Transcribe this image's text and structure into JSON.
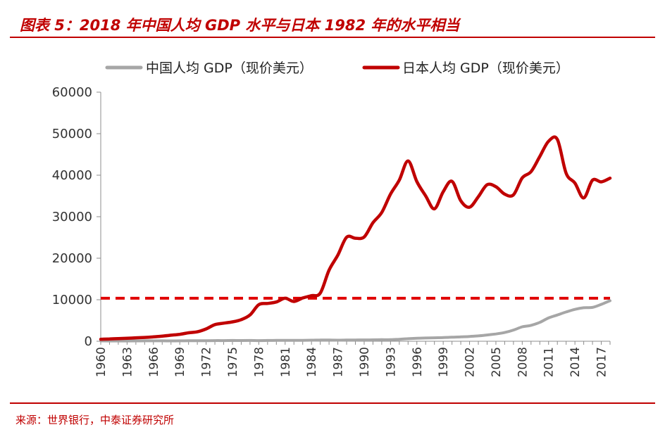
{
  "title": "图表 5：2018 年中国人均 GDP 水平与日本 1982 年的水平相当",
  "source": "来源：世界银行，中泰证券研究所",
  "colors": {
    "china": "#a6a6a6",
    "japan": "#c00000",
    "reference": "#e00000",
    "accent": "#c00000"
  },
  "chart_data": {
    "type": "line",
    "x_tick_labels": [
      "1960",
      "1963",
      "1966",
      "1969",
      "1972",
      "1975",
      "1978",
      "1981",
      "1984",
      "1987",
      "1990",
      "1993",
      "1996",
      "1999",
      "2002",
      "2005",
      "2008",
      "2011",
      "2014",
      "2017"
    ],
    "y_tick_labels": [
      "0",
      "10000",
      "20000",
      "30000",
      "40000",
      "50000",
      "60000"
    ],
    "ylim": [
      0,
      60000
    ],
    "xlim": [
      1960,
      2018
    ],
    "grid": false,
    "legend_position": "top",
    "x": [
      1960,
      1961,
      1962,
      1963,
      1964,
      1965,
      1966,
      1967,
      1968,
      1969,
      1970,
      1971,
      1972,
      1973,
      1974,
      1975,
      1976,
      1977,
      1978,
      1979,
      1980,
      1981,
      1982,
      1983,
      1984,
      1985,
      1986,
      1987,
      1988,
      1989,
      1990,
      1991,
      1992,
      1993,
      1994,
      1995,
      1996,
      1997,
      1998,
      1999,
      2000,
      2001,
      2002,
      2003,
      2004,
      2005,
      2006,
      2007,
      2008,
      2009,
      2010,
      2011,
      2012,
      2013,
      2014,
      2015,
      2016,
      2017,
      2018
    ],
    "series": [
      {
        "name": "中国人均 GDP（现价美元）",
        "values": [
          90,
          75,
          70,
          74,
          85,
          98,
          104,
          96,
          91,
          100,
          113,
          118,
          132,
          157,
          160,
          178,
          165,
          185,
          156,
          184,
          195,
          197,
          203,
          225,
          250,
          294,
          281,
          252,
          284,
          311,
          318,
          333,
          366,
          377,
          474,
          610,
          709,
          781,
          828,
          873,
          959,
          1053,
          1149,
          1289,
          1509,
          1753,
          2099,
          2694,
          3468,
          3832,
          4550,
          5618,
          6317,
          7051,
          7679,
          8067,
          8148,
          8879,
          9771
        ]
      },
      {
        "name": "日本人均 GDP（现价美元）",
        "values": [
          479,
          563,
          634,
          717,
          836,
          919,
          1058,
          1229,
          1451,
          1669,
          2037,
          2272,
          2967,
          3998,
          4353,
          4659,
          5197,
          6335,
          8821,
          9105,
          9463,
          10361,
          9578,
          10425,
          10978,
          11585,
          17113,
          20745,
          25052,
          24822,
          25124,
          28541,
          31014,
          35451,
          38815,
          43440,
          38437,
          35022,
          31903,
          36027,
          38532,
          33846,
          32289,
          34808,
          37689,
          37218,
          35434,
          35275,
          39339,
          40855,
          44508,
          48168,
          48603,
          40455,
          38109,
          34524,
          38794,
          38387,
          39287
        ]
      }
    ],
    "reference_line": {
      "value": 10361,
      "label": ""
    }
  }
}
